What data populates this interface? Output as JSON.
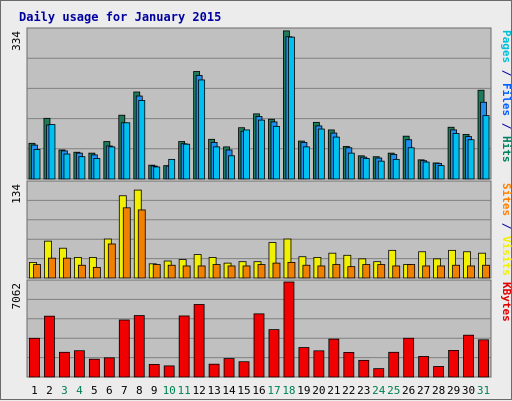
{
  "chart_data": {
    "type": "bar",
    "title": "Daily usage for January 2015",
    "categories": [
      "1",
      "2",
      "3",
      "4",
      "5",
      "6",
      "7",
      "8",
      "9",
      "10",
      "11",
      "12",
      "13",
      "14",
      "15",
      "16",
      "17",
      "18",
      "19",
      "20",
      "21",
      "22",
      "23",
      "24",
      "25",
      "26",
      "27",
      "28",
      "29",
      "30",
      "31"
    ],
    "weekend_days": [
      "3",
      "4",
      "10",
      "11",
      "17",
      "18",
      "24",
      "25",
      "31"
    ],
    "panels": [
      {
        "id": "hits-files-pages",
        "max_label": "334",
        "ylim": [
          0,
          334
        ],
        "side_label": [
          {
            "text": "Pages",
            "color": "#00c0d8"
          },
          {
            "text": " / ",
            "color": "#0000a0"
          },
          {
            "text": "Files",
            "color": "#0060ff"
          },
          {
            "text": " / ",
            "color": "#0000a0"
          },
          {
            "text": "Hits",
            "color": "#008060"
          }
        ],
        "series": [
          {
            "name": "Hits",
            "color": "#1e7a5a",
            "values": [
              80,
              136,
              65,
              60,
              58,
              84,
              143,
              195,
              31,
              30,
              84,
              241,
              89,
              72,
              115,
              146,
              134,
              332,
              85,
              127,
              110,
              73,
              52,
              50,
              58,
              96,
              43,
              36,
              116,
              100,
              199
            ]
          },
          {
            "name": "Files",
            "color": "#1f8ff0",
            "values": [
              76,
              121,
              63,
              58,
              54,
              74,
              126,
              186,
              29,
              29,
              79,
              232,
              82,
              65,
              107,
              140,
              128,
              319,
              82,
              119,
              103,
              70,
              49,
              47,
              55,
              88,
              41,
              35,
              110,
              95,
              172
            ]
          },
          {
            "name": "Pages",
            "color": "#00c0f0",
            "values": [
              66,
              122,
              56,
              50,
              46,
              72,
              126,
              176,
              27,
              44,
              78,
              222,
              72,
              52,
              110,
              132,
              118,
              318,
              72,
              112,
              94,
              58,
              46,
              40,
              44,
              70,
              38,
              30,
              102,
              88,
              142
            ]
          }
        ]
      },
      {
        "id": "visits-sites",
        "max_label": "134",
        "ylim": [
          0,
          134
        ],
        "side_label": [
          {
            "text": "Sites",
            "color": "#ff8000"
          },
          {
            "text": " / ",
            "color": "#0000a0"
          },
          {
            "text": "Visits",
            "color": "#f0f000"
          }
        ],
        "series": [
          {
            "name": "Visits",
            "color": "#f0f000",
            "values": [
              22,
              52,
              42,
              29,
              29,
              55,
              116,
              124,
              20,
              24,
              26,
              33,
              29,
              21,
              23,
              23,
              50,
              55,
              30,
              29,
              35,
              32,
              27,
              23,
              39,
              19,
              37,
              27,
              39,
              37,
              35
            ]
          },
          {
            "name": "Sites",
            "color": "#f08000",
            "values": [
              19,
              28,
              28,
              18,
              15,
              48,
              99,
              96,
              19,
              18,
              17,
              17,
              19,
              17,
              17,
              19,
              21,
              22,
              18,
              17,
              19,
              16,
              19,
              19,
              17,
              19,
              17,
              17,
              18,
              17,
              18
            ]
          }
        ]
      },
      {
        "id": "kbytes",
        "max_label": "7062",
        "ylim": [
          0,
          7062
        ],
        "side_label": [
          {
            "text": "KBytes",
            "color": "#e00000"
          }
        ],
        "series": [
          {
            "name": "KBytes",
            "color": "#f00000",
            "values": [
              2875,
              4521,
              1836,
              1954,
              1325,
              1426,
              4235,
              4568,
              936,
              826,
              4538,
              5390,
              952,
              1368,
              1136,
              4695,
              3524,
              7062,
              2190,
              1946,
              2816,
              1828,
              1238,
              622,
              1836,
              2881,
              1526,
              781,
              1977,
              3107,
              2763
            ]
          }
        ]
      }
    ],
    "colors": {
      "plot_background": "#c0c0c0",
      "gridline": "#808080",
      "frame": "#6a6a6a",
      "title": "#0000a0",
      "axis_text": "#000000",
      "weekend_text": "#008050"
    }
  }
}
